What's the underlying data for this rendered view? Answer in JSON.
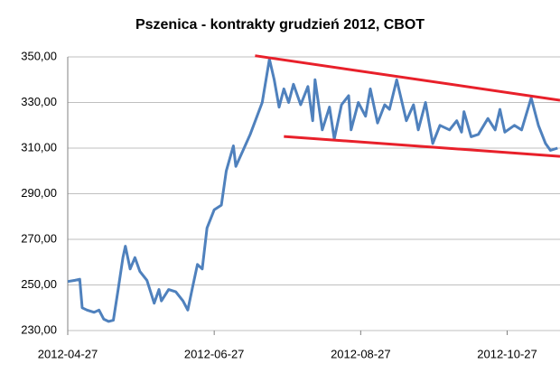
{
  "chart_data": {
    "type": "line",
    "title": "Pszenica - kontrakty grudzień 2012, CBOT",
    "x": [
      "2012-04-27",
      "2012-04-30",
      "2012-05-02",
      "2012-05-03",
      "2012-05-05",
      "2012-05-08",
      "2012-05-10",
      "2012-05-12",
      "2012-05-14",
      "2012-05-16",
      "2012-05-18",
      "2012-05-20",
      "2012-05-21",
      "2012-05-23",
      "2012-05-25",
      "2012-05-27",
      "2012-05-30",
      "2012-06-02",
      "2012-06-04",
      "2012-06-05",
      "2012-06-08",
      "2012-06-11",
      "2012-06-14",
      "2012-06-16",
      "2012-06-18",
      "2012-06-20",
      "2012-06-22",
      "2012-06-24",
      "2012-06-27",
      "2012-06-30",
      "2012-07-02",
      "2012-07-05",
      "2012-07-06",
      "2012-07-09",
      "2012-07-12",
      "2012-07-17",
      "2012-07-20",
      "2012-07-22",
      "2012-07-24",
      "2012-07-26",
      "2012-07-28",
      "2012-07-30",
      "2012-08-02",
      "2012-08-05",
      "2012-08-07",
      "2012-08-08",
      "2012-08-11",
      "2012-08-14",
      "2012-08-16",
      "2012-08-19",
      "2012-08-22",
      "2012-08-23",
      "2012-08-26",
      "2012-08-29",
      "2012-08-31",
      "2012-09-03",
      "2012-09-06",
      "2012-09-08",
      "2012-09-11",
      "2012-09-15",
      "2012-09-18",
      "2012-09-20",
      "2012-09-23",
      "2012-09-26",
      "2012-09-29",
      "2012-10-03",
      "2012-10-06",
      "2012-10-08",
      "2012-10-09",
      "2012-10-12",
      "2012-10-15",
      "2012-10-19",
      "2012-10-22",
      "2012-10-24",
      "2012-10-26",
      "2012-10-30",
      "2012-11-02",
      "2012-11-06",
      "2012-11-09",
      "2012-11-12",
      "2012-11-14",
      "2012-11-17"
    ],
    "series": [
      {
        "color": "#4f81bd",
        "values": [
          251.5,
          252,
          252.5,
          240,
          239,
          238,
          239,
          235,
          234,
          234.5,
          248,
          262,
          267,
          257,
          262,
          256,
          252,
          242,
          248,
          243,
          248,
          247,
          243,
          239,
          249,
          259,
          257,
          275,
          283,
          285,
          300,
          311,
          302,
          309,
          316,
          330,
          349,
          340,
          328,
          336,
          330,
          338,
          329,
          337,
          322,
          340,
          318,
          328,
          314,
          329,
          333,
          318,
          330,
          324,
          336,
          321,
          329,
          327,
          340,
          322,
          329,
          318,
          330,
          312,
          320,
          318,
          322,
          317,
          326,
          315,
          316,
          323,
          318,
          327,
          317,
          320,
          318,
          332,
          320,
          312,
          309,
          310
        ]
      }
    ],
    "trend_lines": [
      {
        "color": "#e8202a",
        "x": [
          "2012-07-14",
          "2012-11-18"
        ],
        "values": [
          350.5,
          331
        ]
      },
      {
        "color": "#e8202a",
        "x": [
          "2012-07-26",
          "2012-11-18"
        ],
        "values": [
          315.1,
          306.4
        ]
      }
    ],
    "xlim": [
      "2012-04-27",
      "2012-11-18"
    ],
    "xticks": [
      "2012-04-27",
      "2012-06-27",
      "2012-08-27",
      "2012-10-27"
    ],
    "ylim": [
      230,
      350
    ],
    "yticks": [
      {
        "value": 230,
        "label": "230,00"
      },
      {
        "value": 250,
        "label": "250,00"
      },
      {
        "value": 270,
        "label": "270,00"
      },
      {
        "value": 290,
        "label": "290,00"
      },
      {
        "value": 310,
        "label": "310,00"
      },
      {
        "value": 330,
        "label": "330,00"
      },
      {
        "value": 350,
        "label": "350,00"
      }
    ],
    "grid": true
  }
}
